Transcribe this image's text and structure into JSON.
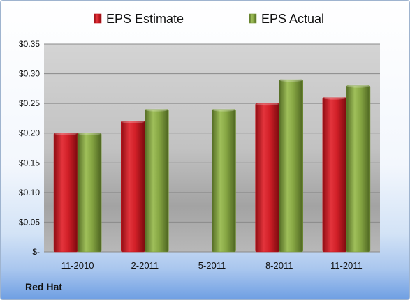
{
  "company": "Red Hat",
  "chart_data": {
    "type": "bar",
    "categories": [
      "11-2010",
      "2-2011",
      "5-2011",
      "8-2011",
      "11-2011"
    ],
    "series": [
      {
        "name": "EPS Estimate",
        "color": "#c4141c",
        "values": [
          0.2,
          0.22,
          null,
          0.25,
          0.26
        ]
      },
      {
        "name": "EPS Actual",
        "color": "#7a9a3a",
        "values": [
          0.2,
          0.24,
          0.24,
          0.29,
          0.28
        ]
      }
    ],
    "ylim": [
      0,
      0.35
    ],
    "yticks": [
      0,
      0.05,
      0.1,
      0.15,
      0.2,
      0.25,
      0.3,
      0.35
    ],
    "ytick_labels": [
      "$-",
      "$0.05",
      "$0.10",
      "$0.15",
      "$0.20",
      "$0.25",
      "$0.30",
      "$0.35"
    ],
    "grid": true,
    "legend_position": "top"
  }
}
